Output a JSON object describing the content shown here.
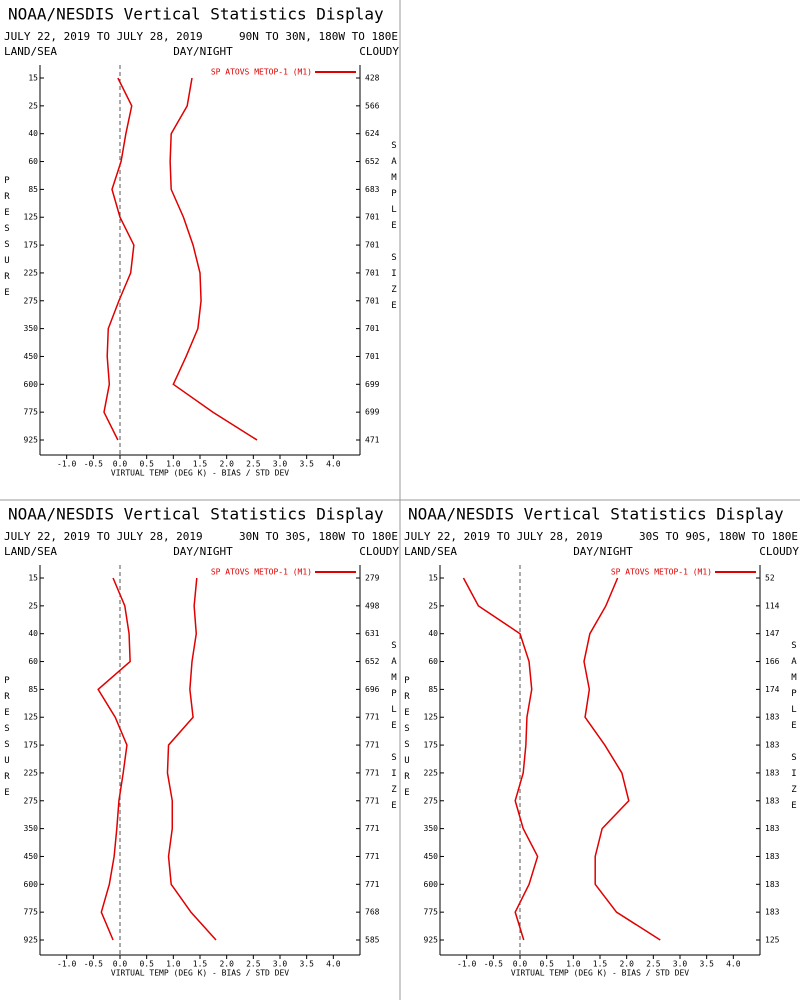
{
  "chart_data": [
    {
      "type": "line",
      "title": "NOAA/NESDIS Vertical Statistics Display",
      "subtitle": "JULY 22, 2019 TO JULY 28, 2019",
      "region": "90N TO 30N, 180W TO 180E",
      "land_sea": "LAND/SEA",
      "day_night": "DAY/NIGHT",
      "cloudy": "CLOUDY",
      "y_label": "PRESSURE",
      "y2_label": "SAMPLE SIZE",
      "x_label": "VIRTUAL TEMP (DEG K) - BIAS / STD DEV",
      "categories": [
        15,
        25,
        40,
        60,
        85,
        125,
        175,
        225,
        275,
        350,
        450,
        600,
        775,
        925
      ],
      "sample_sizes": [
        428,
        566,
        624,
        652,
        683,
        701,
        701,
        701,
        701,
        701,
        701,
        699,
        699,
        471
      ],
      "series": [
        {
          "name": "SP ATOVS METOP-1 (M1)",
          "color": "#e00000",
          "values": [
            -0.04,
            0.22,
            0.11,
            0.02,
            -0.15,
            0.0,
            0.26,
            0.2,
            -0.02,
            -0.22,
            -0.24,
            -0.2,
            -0.3,
            -0.04
          ]
        },
        {
          "color": "#e00000",
          "values": [
            1.35,
            1.26,
            0.96,
            0.94,
            0.96,
            1.19,
            1.37,
            1.5,
            1.52,
            1.46,
            1.24,
            1.0,
            1.74,
            2.57
          ]
        }
      ],
      "xlim": [
        -1.5,
        4.5
      ],
      "xticks": [
        {
          "value": -1,
          "label": "-1.0"
        },
        -0.5,
        {
          "value": 0,
          "label": "0.0"
        },
        0.5,
        {
          "value": 1,
          "label": "1.0"
        },
        1.5,
        {
          "value": 2,
          "label": "2.0"
        },
        2.5,
        {
          "value": 3,
          "label": "3.0"
        },
        3.5,
        {
          "value": 4,
          "label": "4.0"
        }
      ]
    },
    {
      "type": "line",
      "title": "NOAA/NESDIS Vertical Statistics Display",
      "subtitle": "JULY 22, 2019 TO JULY 28, 2019",
      "region": "30N TO 30S, 180W TO 180E",
      "land_sea": "LAND/SEA",
      "day_night": "DAY/NIGHT",
      "cloudy": "CLOUDY",
      "y_label": "PRESSURE",
      "y2_label": "SAMPLE SIZE",
      "x_label": "VIRTUAL TEMP (DEG K) - BIAS / STD DEV",
      "categories": [
        15,
        25,
        40,
        60,
        85,
        125,
        175,
        225,
        275,
        350,
        450,
        600,
        775,
        925
      ],
      "sample_sizes": [
        279,
        498,
        631,
        652,
        696,
        771,
        771,
        771,
        771,
        771,
        771,
        771,
        768,
        585
      ],
      "series": [
        {
          "name": "SP ATOVS METOP-1 (M1)",
          "color": "#e00000",
          "values": [
            -0.13,
            0.09,
            0.17,
            0.19,
            -0.41,
            -0.09,
            0.13,
            0.06,
            -0.02,
            -0.06,
            -0.11,
            -0.2,
            -0.35,
            -0.13
          ]
        },
        {
          "color": "#e00000",
          "values": [
            1.44,
            1.39,
            1.43,
            1.35,
            1.31,
            1.37,
            0.91,
            0.89,
            0.98,
            0.98,
            0.91,
            0.96,
            1.33,
            1.8
          ]
        }
      ],
      "xlim": [
        -1.5,
        4.5
      ],
      "xticks": [
        {
          "value": -1,
          "label": "-1.0"
        },
        -0.5,
        {
          "value": 0,
          "label": "0.0"
        },
        0.5,
        {
          "value": 1,
          "label": "1.0"
        },
        1.5,
        {
          "value": 2,
          "label": "2.0"
        },
        2.5,
        {
          "value": 3,
          "label": "3.0"
        },
        3.5,
        {
          "value": 4,
          "label": "4.0"
        }
      ]
    },
    {
      "type": "line",
      "title": "NOAA/NESDIS Vertical Statistics Display",
      "subtitle": "JULY 22, 2019 TO JULY 28, 2019",
      "region": "30S TO 90S, 180W TO 180E",
      "land_sea": "LAND/SEA",
      "day_night": "DAY/NIGHT",
      "cloudy": "CLOUDY",
      "y_label": "PRESSURE",
      "y2_label": "SAMPLE SIZE",
      "x_label": "VIRTUAL TEMP (DEG K) - BIAS / STD DEV",
      "categories": [
        15,
        25,
        40,
        60,
        85,
        125,
        175,
        225,
        275,
        350,
        450,
        600,
        775,
        925
      ],
      "sample_sizes": [
        52,
        114,
        147,
        166,
        174,
        183,
        183,
        183,
        183,
        183,
        183,
        183,
        183,
        125
      ],
      "series": [
        {
          "name": "SP ATOVS METOP-1 (M1)",
          "color": "#e00000",
          "values": [
            -1.06,
            -0.78,
            0.0,
            0.17,
            0.22,
            0.13,
            0.11,
            0.06,
            -0.09,
            0.06,
            0.33,
            0.17,
            -0.09,
            0.07
          ]
        },
        {
          "color": "#e00000",
          "values": [
            1.83,
            1.61,
            1.31,
            1.2,
            1.3,
            1.22,
            1.59,
            1.91,
            2.04,
            1.54,
            1.41,
            1.41,
            1.81,
            2.63
          ]
        }
      ],
      "xlim": [
        -1.5,
        4.5
      ],
      "xticks": [
        {
          "value": -1,
          "label": "-1.0"
        },
        -0.5,
        {
          "value": 0,
          "label": "0.0"
        },
        0.5,
        {
          "value": 1,
          "label": "1.0"
        },
        1.5,
        {
          "value": 2,
          "label": "2.0"
        },
        2.5,
        {
          "value": 3,
          "label": "3.0"
        },
        3.5,
        {
          "value": 4,
          "label": "4.0"
        }
      ]
    }
  ]
}
